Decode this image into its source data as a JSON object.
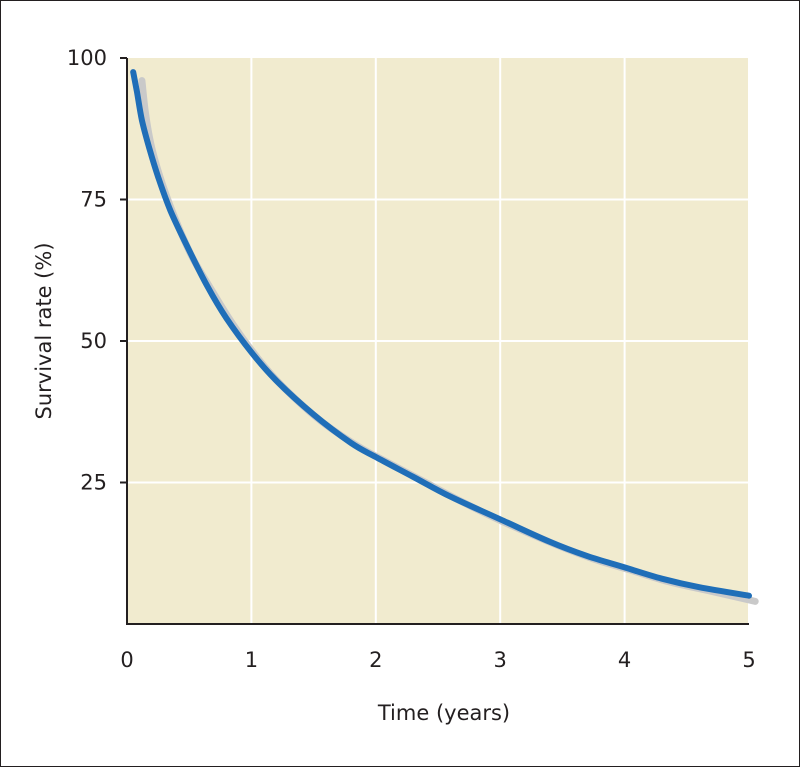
{
  "chart_data": {
    "type": "line",
    "title": "",
    "xlabel": "Time (years)",
    "ylabel": "Survival rate (%)",
    "xlim": [
      0,
      5
    ],
    "ylim": [
      0,
      100
    ],
    "x_ticks": [
      "0",
      "1",
      "2",
      "3",
      "4",
      "5"
    ],
    "y_ticks": [
      "25",
      "50",
      "75",
      "100"
    ],
    "grid": true,
    "colors": {
      "plot_background": "#f1ebcf",
      "grid": "#ffffff",
      "axis": "#231f20",
      "series_line": "#1f6eb8",
      "shadow_line": "#c9c9c9"
    },
    "series": [
      {
        "x": [
          0.05,
          0.08,
          0.12,
          0.18,
          0.25,
          0.35,
          0.5,
          0.65,
          0.8,
          1.0,
          1.2,
          1.5,
          1.8,
          2.0,
          2.3,
          2.6,
          3.0,
          3.4,
          3.7,
          4.0,
          4.3,
          4.6,
          5.0
        ],
        "values": [
          97.5,
          94,
          89,
          84,
          79,
          73,
          66,
          59.5,
          54,
          48,
          43,
          37,
          32,
          29.5,
          26,
          22.5,
          18.5,
          14.5,
          12,
          10,
          8,
          6.5,
          5
        ]
      },
      {
        "x": [
          0.12,
          0.15,
          0.2,
          0.28,
          0.38,
          0.52,
          0.68,
          0.85,
          1.05,
          1.25,
          1.55,
          1.85,
          2.1,
          2.4,
          2.7,
          3.05,
          3.45,
          3.75,
          4.05,
          4.35,
          4.65,
          5.05
        ],
        "values": [
          96,
          90,
          84,
          78,
          72,
          65,
          59,
          53,
          47,
          42,
          36,
          31.5,
          28.5,
          25,
          21.5,
          17.8,
          14,
          11.5,
          9.5,
          7.5,
          6,
          4
        ]
      }
    ]
  }
}
